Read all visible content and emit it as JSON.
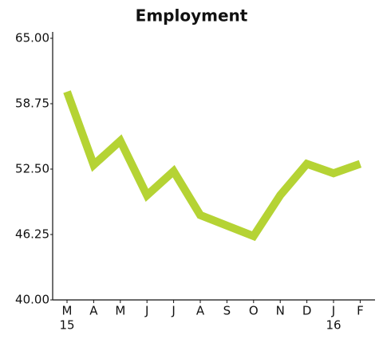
{
  "chart_data": {
    "type": "line",
    "title": "Employment",
    "categories": [
      "M",
      "A",
      "M",
      "J",
      "J",
      "A",
      "S",
      "O",
      "N",
      "D",
      "J",
      "F"
    ],
    "year_labels": [
      "15",
      null,
      null,
      null,
      null,
      null,
      null,
      null,
      null,
      null,
      "16",
      null
    ],
    "values": [
      59.9,
      52.9,
      55.2,
      50.0,
      52.3,
      48.1,
      47.1,
      46.1,
      50.0,
      53.0,
      52.1,
      53.0
    ],
    "color": "#b5d334",
    "ylim": [
      40,
      65
    ],
    "yticks": [
      {
        "value": 40,
        "label": "40.00"
      },
      {
        "value": 46.25,
        "label": "46.25"
      },
      {
        "value": 52.5,
        "label": "52.50"
      },
      {
        "value": 58.75,
        "label": "58.75"
      },
      {
        "value": 65,
        "label": "65.00"
      }
    ]
  }
}
